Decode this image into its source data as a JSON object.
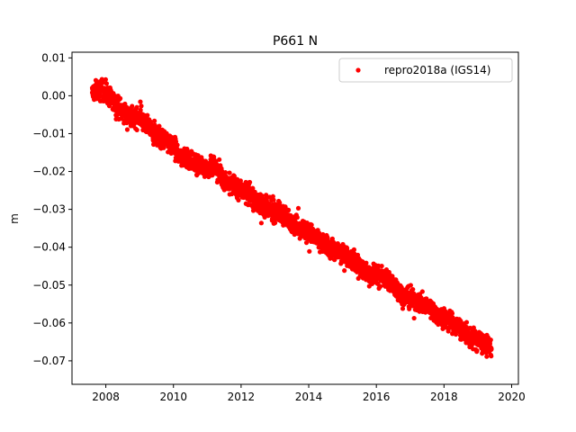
{
  "chart_data": {
    "type": "scatter",
    "title": "P661 N",
    "xlabel": "",
    "ylabel": "m",
    "xlim": [
      2007.0,
      2020.2
    ],
    "ylim": [
      -0.0762,
      0.0115
    ],
    "x_ticks": [
      2008,
      2010,
      2012,
      2014,
      2016,
      2018,
      2020
    ],
    "x_tick_labels": [
      "2008",
      "2010",
      "2012",
      "2014",
      "2016",
      "2018",
      "2020"
    ],
    "y_ticks": [
      0.01,
      0.0,
      -0.01,
      -0.02,
      -0.03,
      -0.04,
      -0.05,
      -0.06,
      -0.07
    ],
    "y_tick_labels": [
      "0.01",
      "0.00",
      "−0.01",
      "−0.02",
      "−0.03",
      "−0.04",
      "−0.05",
      "−0.06",
      "−0.07"
    ],
    "grid": false,
    "legend_position": "top-right",
    "series": [
      {
        "name": "repro2018a (IGS14)",
        "color": "#ff0000",
        "marker": "circle",
        "x": [
          2007.6,
          2007.8,
          2008.0,
          2008.2,
          2008.4,
          2008.6,
          2008.8,
          2009.0,
          2009.2,
          2009.4,
          2009.6,
          2009.8,
          2010.0,
          2010.2,
          2010.4,
          2010.6,
          2010.8,
          2011.0,
          2011.2,
          2011.4,
          2011.6,
          2011.8,
          2012.0,
          2012.2,
          2012.4,
          2012.6,
          2012.8,
          2013.0,
          2013.2,
          2013.4,
          2013.6,
          2013.8,
          2014.0,
          2014.2,
          2014.4,
          2014.6,
          2014.8,
          2015.0,
          2015.2,
          2015.4,
          2015.6,
          2015.8,
          2016.0,
          2016.2,
          2016.4,
          2016.6,
          2016.8,
          2017.0,
          2017.2,
          2017.4,
          2017.6,
          2017.8,
          2018.0,
          2018.2,
          2018.4,
          2018.6,
          2018.8,
          2019.0,
          2019.2,
          2019.4
        ],
        "y": [
          0.0008,
          0.0015,
          0.0012,
          -0.0015,
          -0.003,
          -0.005,
          -0.006,
          -0.0055,
          -0.0075,
          -0.01,
          -0.011,
          -0.012,
          -0.0135,
          -0.016,
          -0.0165,
          -0.018,
          -0.0185,
          -0.019,
          -0.0185,
          -0.021,
          -0.023,
          -0.024,
          -0.025,
          -0.0255,
          -0.0275,
          -0.029,
          -0.03,
          -0.0305,
          -0.031,
          -0.0325,
          -0.034,
          -0.035,
          -0.036,
          -0.0375,
          -0.039,
          -0.04,
          -0.041,
          -0.042,
          -0.0425,
          -0.044,
          -0.046,
          -0.047,
          -0.0475,
          -0.048,
          -0.049,
          -0.051,
          -0.053,
          -0.0535,
          -0.0545,
          -0.055,
          -0.056,
          -0.058,
          -0.059,
          -0.0595,
          -0.061,
          -0.063,
          -0.064,
          -0.0645,
          -0.0655,
          -0.067
        ]
      }
    ]
  }
}
